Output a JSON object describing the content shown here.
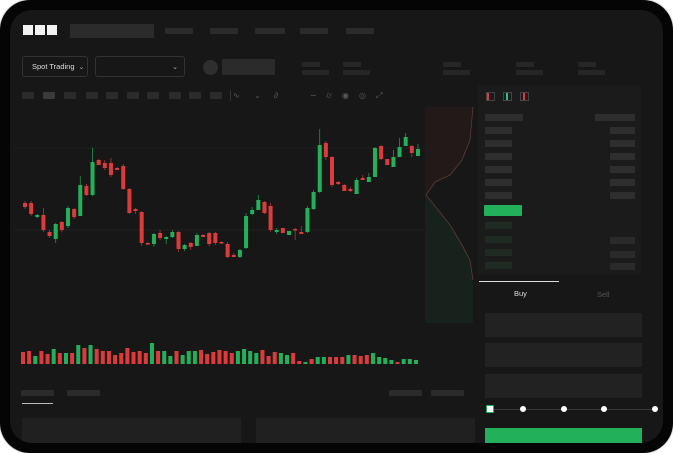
{
  "header": {
    "logo": "OKX"
  },
  "market_bar": {
    "mode_button": "Spot Trading",
    "mode_chevron": "chevron-down-icon",
    "pair_chevron": "chevron-down-icon"
  },
  "toolbar": {
    "icons": [
      "indicator-icon",
      "line-icon",
      "text-icon",
      "wave-icon",
      "ruler-icon",
      "camera-icon",
      "settings-icon",
      "fullscreen-icon"
    ]
  },
  "orderbook": {
    "icons": [
      "orderbook-both-icon",
      "orderbook-buy-icon",
      "orderbook-sell-icon"
    ]
  },
  "trade": {
    "buy_tab": "Buy",
    "sell_tab": "Sell",
    "slider_value_percent": 0
  },
  "colors": {
    "up": "#22b15a",
    "down": "#dc3b3b",
    "background": "#171717",
    "accent": "#22b15a"
  },
  "chart_data": {
    "type": "candlestick",
    "candles": [
      [
        97,
        99,
        91,
        93
      ],
      [
        97,
        99,
        84,
        86
      ],
      [
        83,
        86,
        82,
        85
      ],
      [
        85,
        92,
        68,
        70
      ],
      [
        68,
        70,
        62,
        64
      ],
      [
        61,
        77,
        57,
        76
      ],
      [
        78,
        79,
        68,
        70
      ],
      [
        74,
        94,
        72,
        92
      ],
      [
        91,
        92,
        81,
        83
      ],
      [
        84,
        124,
        84,
        115
      ],
      [
        114,
        116,
        104,
        105
      ],
      [
        105,
        152,
        104,
        138
      ],
      [
        140,
        141,
        135,
        135
      ],
      [
        137,
        140,
        130,
        132
      ],
      [
        137,
        142,
        123,
        125
      ],
      [
        132,
        133,
        130,
        130
      ],
      [
        134,
        136,
        110,
        111
      ],
      [
        111,
        112,
        86,
        87
      ],
      [
        91,
        92,
        86,
        89
      ],
      [
        88,
        89,
        54,
        57
      ],
      [
        57,
        58,
        55,
        56
      ],
      [
        56,
        67,
        53,
        66
      ],
      [
        67,
        70,
        60,
        62
      ],
      [
        61,
        64,
        56,
        63
      ],
      [
        63,
        70,
        62,
        68
      ],
      [
        68,
        69,
        48,
        51
      ],
      [
        51,
        56,
        49,
        55
      ],
      [
        57,
        58,
        50,
        53
      ],
      [
        54,
        67,
        54,
        65
      ],
      [
        65,
        66,
        63,
        63
      ],
      [
        67,
        68,
        54,
        56
      ],
      [
        67,
        68,
        55,
        57
      ],
      [
        58,
        59,
        56,
        57
      ],
      [
        56,
        58,
        42,
        43
      ],
      [
        45,
        47,
        43,
        43
      ],
      [
        43,
        51,
        42,
        50
      ],
      [
        52,
        87,
        51,
        84
      ],
      [
        86,
        93,
        85,
        90
      ],
      [
        90,
        105,
        90,
        100
      ],
      [
        98,
        99,
        86,
        87
      ],
      [
        94,
        97,
        68,
        70
      ],
      [
        68,
        72,
        66,
        70
      ],
      [
        72,
        72,
        67,
        67
      ],
      [
        65,
        69,
        65,
        69
      ],
      [
        71,
        72,
        60,
        70
      ],
      [
        68,
        74,
        66,
        66
      ],
      [
        68,
        94,
        67,
        92
      ],
      [
        91,
        110,
        90,
        108
      ],
      [
        108,
        171,
        107,
        155
      ],
      [
        157,
        159,
        140,
        143
      ],
      [
        143,
        144,
        113,
        115
      ],
      [
        118,
        119,
        115,
        116
      ],
      [
        115,
        116,
        109,
        109
      ],
      [
        111,
        113,
        108,
        109
      ],
      [
        106,
        122,
        106,
        120
      ],
      [
        122,
        125,
        120,
        120
      ],
      [
        118,
        127,
        118,
        123
      ],
      [
        123,
        153,
        123,
        152
      ],
      [
        154,
        155,
        140,
        141
      ],
      [
        141,
        141,
        135,
        135
      ],
      [
        133,
        150,
        133,
        143
      ],
      [
        143,
        162,
        143,
        153
      ],
      [
        154,
        167,
        154,
        163
      ],
      [
        154,
        155,
        143,
        147
      ],
      [
        144,
        156,
        144,
        151
      ]
    ],
    "volume": [
      [
        12,
        "down"
      ],
      [
        13,
        "down"
      ],
      [
        8,
        "up"
      ],
      [
        13,
        "down"
      ],
      [
        10,
        "down"
      ],
      [
        15,
        "up"
      ],
      [
        11,
        "down"
      ],
      [
        11,
        "up"
      ],
      [
        11,
        "down"
      ],
      [
        19,
        "up"
      ],
      [
        16,
        "down"
      ],
      [
        19,
        "up"
      ],
      [
        15,
        "down"
      ],
      [
        13,
        "down"
      ],
      [
        13,
        "down"
      ],
      [
        9,
        "down"
      ],
      [
        11,
        "down"
      ],
      [
        16,
        "down"
      ],
      [
        12,
        "down"
      ],
      [
        13,
        "down"
      ],
      [
        11,
        "down"
      ],
      [
        21,
        "up"
      ],
      [
        13,
        "down"
      ],
      [
        13,
        "up"
      ],
      [
        8,
        "up"
      ],
      [
        13,
        "down"
      ],
      [
        9,
        "up"
      ],
      [
        13,
        "up"
      ],
      [
        13,
        "up"
      ],
      [
        14,
        "down"
      ],
      [
        10,
        "down"
      ],
      [
        12,
        "down"
      ],
      [
        14,
        "down"
      ],
      [
        13,
        "down"
      ],
      [
        11,
        "down"
      ],
      [
        13,
        "up"
      ],
      [
        15,
        "up"
      ],
      [
        13,
        "up"
      ],
      [
        11,
        "up"
      ],
      [
        14,
        "down"
      ],
      [
        8,
        "down"
      ],
      [
        12,
        "down"
      ],
      [
        11,
        "up"
      ],
      [
        9,
        "up"
      ],
      [
        11,
        "down"
      ],
      [
        3,
        "down"
      ],
      [
        2,
        "up"
      ],
      [
        5,
        "down"
      ],
      [
        7,
        "up"
      ],
      [
        7,
        "up"
      ],
      [
        7,
        "down"
      ],
      [
        7,
        "down"
      ],
      [
        7,
        "down"
      ],
      [
        9,
        "up"
      ],
      [
        9,
        "down"
      ],
      [
        8,
        "down"
      ],
      [
        9,
        "down"
      ],
      [
        11,
        "up"
      ],
      [
        7,
        "up"
      ],
      [
        6,
        "up"
      ],
      [
        4,
        "up"
      ],
      [
        2,
        "down"
      ],
      [
        5,
        "up"
      ],
      [
        5,
        "up"
      ],
      [
        4,
        "up"
      ]
    ]
  }
}
